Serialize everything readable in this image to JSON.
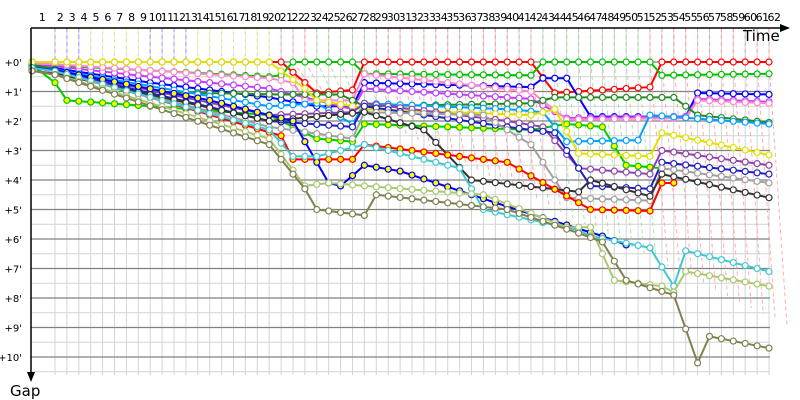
{
  "chart_data": {
    "type": "line",
    "xlabel": "Time",
    "ylabel": "Gap",
    "x_tick_labels": [
      "1",
      "2",
      "3",
      "4",
      "5",
      "6",
      "7",
      "8",
      "9",
      "10",
      "11",
      "12",
      "13",
      "14",
      "15",
      "16",
      "17",
      "18",
      "19",
      "20",
      "21",
      "22",
      "23",
      "24",
      "25",
      "26",
      "27",
      "28",
      "29",
      "30",
      "31",
      "32",
      "33",
      "34",
      "35",
      "36",
      "37",
      "38",
      "39",
      "40",
      "41",
      "42",
      "43",
      "44",
      "45",
      "46",
      "47",
      "48",
      "49",
      "50",
      "51",
      "52",
      "53",
      "54",
      "55",
      "56",
      "57",
      "58",
      "59",
      "60",
      "61",
      "62"
    ],
    "y_tick_labels": [
      "+0'",
      "+1'",
      "+2'",
      "+3'",
      "+4'",
      "+5'",
      "+6'",
      "+7'",
      "+8'",
      "+9'",
      "+10'"
    ],
    "xlim": [
      1,
      62
    ],
    "ylim": [
      0,
      10.6
    ],
    "y_inverted": true,
    "grid": true,
    "series": [
      {
        "color": "#ff0000",
        "fill": "#ffffff",
        "points": [
          [
            1,
            0
          ],
          [
            21,
            0
          ],
          [
            24,
            1.05
          ],
          [
            27,
            0.95
          ],
          [
            28,
            0
          ],
          [
            42,
            0
          ],
          [
            44,
            1.05
          ],
          [
            52,
            0.85
          ],
          [
            53,
            0
          ],
          [
            62,
            0
          ]
        ]
      },
      {
        "color": "#00c000",
        "fill": "#ffffff",
        "points": [
          [
            1,
            0.1
          ],
          [
            20,
            0.5
          ],
          [
            21,
            0.45
          ],
          [
            22,
            0
          ],
          [
            27,
            0
          ],
          [
            28,
            0.4
          ],
          [
            42,
            0.45
          ],
          [
            43,
            0
          ],
          [
            52,
            0
          ],
          [
            53,
            0.45
          ],
          [
            62,
            0.4
          ]
        ]
      },
      {
        "color": "#0000ff",
        "fill": "#ffffff",
        "points": [
          [
            1,
            0.15
          ],
          [
            10,
            0.7
          ],
          [
            20,
            1.2
          ],
          [
            24,
            1.5
          ],
          [
            27,
            1.5
          ],
          [
            28,
            0.7
          ],
          [
            42,
            0.85
          ],
          [
            43,
            0.55
          ],
          [
            45,
            0.55
          ],
          [
            47,
            1.85
          ],
          [
            55,
            1.85
          ],
          [
            56,
            1.05
          ],
          [
            62,
            1.1
          ]
        ]
      },
      {
        "color": "#c040ff",
        "fill": "#ffffff",
        "points": [
          [
            1,
            0.1
          ],
          [
            10,
            0.5
          ],
          [
            20,
            0.9
          ],
          [
            27,
            1.6
          ],
          [
            28,
            0.9
          ],
          [
            42,
            1.25
          ],
          [
            45,
            1.9
          ],
          [
            55,
            1.85
          ],
          [
            56,
            1.25
          ],
          [
            62,
            1.35
          ]
        ]
      },
      {
        "color": "#ff88cc",
        "fill": "#ffffff",
        "points": [
          [
            1,
            0.05
          ],
          [
            20,
            0.55
          ],
          [
            22,
            0.7
          ],
          [
            23,
            1.3
          ],
          [
            27,
            1.3
          ],
          [
            28,
            0.4
          ],
          [
            42,
            1.0
          ],
          [
            45,
            1.95
          ],
          [
            55,
            1.9
          ],
          [
            56,
            1.3
          ],
          [
            62,
            1.4
          ]
        ]
      },
      {
        "color": "#228b22",
        "fill": "#ffffff",
        "points": [
          [
            1,
            0.1
          ],
          [
            8,
            1.0
          ],
          [
            21,
            1.1
          ],
          [
            26,
            1.1
          ],
          [
            28,
            1.5
          ],
          [
            42,
            1.4
          ],
          [
            44,
            1.2
          ],
          [
            54,
            1.2
          ],
          [
            56,
            1.8
          ],
          [
            62,
            2.05
          ]
        ]
      },
      {
        "color": "#00cc00",
        "fill": "#ffff00",
        "points": [
          [
            1,
            0.1
          ],
          [
            3,
            1.3
          ],
          [
            10,
            1.5
          ],
          [
            20,
            1.8
          ],
          [
            24,
            2.6
          ],
          [
            27,
            2.7
          ],
          [
            28,
            2.1
          ],
          [
            42,
            2.3
          ],
          [
            45,
            2.1
          ],
          [
            48,
            2.2
          ],
          [
            50,
            3.5
          ],
          [
            53,
            3.6
          ]
        ]
      },
      {
        "color": "#00a0ff",
        "fill": "#ffffff",
        "points": [
          [
            1,
            0.2
          ],
          [
            20,
            1.5
          ],
          [
            24,
            1.4
          ],
          [
            27,
            2.1
          ],
          [
            28,
            1.4
          ],
          [
            40,
            1.6
          ],
          [
            43,
            1.7
          ],
          [
            45,
            2.7
          ],
          [
            51,
            2.65
          ],
          [
            52,
            1.8
          ],
          [
            62,
            2.1
          ]
        ]
      },
      {
        "color": "#e0e000",
        "fill": "#ffffff",
        "points": [
          [
            1,
            0
          ],
          [
            20,
            0
          ],
          [
            23,
            0.9
          ],
          [
            24,
            1.3
          ],
          [
            27,
            1.5
          ],
          [
            28,
            1.6
          ],
          [
            42,
            1.8
          ],
          [
            44,
            1.6
          ],
          [
            46,
            3.1
          ],
          [
            52,
            3.2
          ],
          [
            53,
            2.4
          ],
          [
            62,
            3.15
          ]
        ]
      },
      {
        "color": "#8e44ad",
        "fill": "#ffffff",
        "points": [
          [
            1,
            0.2
          ],
          [
            20,
            1.8
          ],
          [
            27,
            1.7
          ],
          [
            28,
            1.4
          ],
          [
            40,
            2.0
          ],
          [
            43,
            2.2
          ],
          [
            46,
            3.6
          ],
          [
            52,
            3.8
          ],
          [
            53,
            3.0
          ],
          [
            62,
            3.5
          ]
        ]
      },
      {
        "color": "#2020c0",
        "fill": "#ffffff",
        "points": [
          [
            1,
            0.2
          ],
          [
            20,
            2.0
          ],
          [
            27,
            2.2
          ],
          [
            28,
            1.5
          ],
          [
            40,
            2.2
          ],
          [
            44,
            2.4
          ],
          [
            47,
            4.2
          ],
          [
            52,
            4.3
          ],
          [
            53,
            3.4
          ],
          [
            62,
            3.8
          ]
        ]
      },
      {
        "color": "#a0a0a0",
        "fill": "#ffffff",
        "points": [
          [
            1,
            0.2
          ],
          [
            20,
            2.2
          ],
          [
            27,
            2.6
          ],
          [
            28,
            1.7
          ],
          [
            38,
            1.8
          ],
          [
            42,
            2.8
          ],
          [
            45,
            4.6
          ],
          [
            52,
            4.7
          ],
          [
            53,
            3.6
          ],
          [
            62,
            4.1
          ]
        ]
      },
      {
        "color": "#333333",
        "fill": "#ffffff",
        "points": [
          [
            1,
            0.3
          ],
          [
            20,
            2.0
          ],
          [
            28,
            1.7
          ],
          [
            33,
            2.3
          ],
          [
            37,
            4.0
          ],
          [
            46,
            4.4
          ],
          [
            47,
            4.0
          ],
          [
            52,
            4.55
          ],
          [
            53,
            3.8
          ],
          [
            62,
            4.6
          ]
        ]
      },
      {
        "color": "#ff0000",
        "fill": "#ffff00",
        "points": [
          [
            1,
            0.2
          ],
          [
            10,
            1.2
          ],
          [
            21,
            2.5
          ],
          [
            22,
            3.3
          ],
          [
            27,
            3.3
          ],
          [
            28,
            2.8
          ],
          [
            40,
            3.4
          ],
          [
            47,
            5.0
          ],
          [
            52,
            5.05
          ],
          [
            53,
            4.1
          ],
          [
            54,
            4.1
          ]
        ]
      },
      {
        "color": "#0000ee",
        "fill": "#ffff00",
        "points": [
          [
            1,
            0.2
          ],
          [
            15,
            1.3
          ],
          [
            22,
            2.0
          ],
          [
            25,
            4.1
          ],
          [
            26,
            4.2
          ],
          [
            28,
            3.5
          ],
          [
            31,
            3.7
          ],
          [
            40,
            4.9
          ],
          [
            44,
            5.4
          ],
          [
            48,
            5.9
          ],
          [
            50,
            6.2
          ]
        ]
      },
      {
        "color": "#40c8d0",
        "fill": "#ffffff",
        "points": [
          [
            1,
            0.2
          ],
          [
            20,
            2.3
          ],
          [
            22,
            3.2
          ],
          [
            24,
            3.2
          ],
          [
            28,
            2.8
          ],
          [
            36,
            3.6
          ],
          [
            38,
            5.0
          ],
          [
            46,
            5.7
          ],
          [
            47,
            5.9
          ],
          [
            52,
            6.3
          ],
          [
            54,
            7.6
          ],
          [
            55,
            6.4
          ],
          [
            62,
            7.1
          ]
        ]
      },
      {
        "color": "#a8c870",
        "fill": "#ffffff",
        "points": [
          [
            1,
            0.3
          ],
          [
            20,
            2.6
          ],
          [
            23,
            4.2
          ],
          [
            25,
            4.1
          ],
          [
            28,
            4.2
          ],
          [
            38,
            4.5
          ],
          [
            45,
            5.6
          ],
          [
            47,
            5.6
          ],
          [
            49,
            7.4
          ],
          [
            53,
            7.6
          ],
          [
            54,
            7.8
          ],
          [
            55,
            7.1
          ],
          [
            62,
            7.6
          ]
        ]
      },
      {
        "color": "#808050",
        "fill": "#ffffff",
        "points": [
          [
            1,
            0.3
          ],
          [
            20,
            2.8
          ],
          [
            23,
            4.3
          ],
          [
            24,
            5.0
          ],
          [
            28,
            5.2
          ],
          [
            29,
            4.5
          ],
          [
            40,
            5.0
          ],
          [
            46,
            5.8
          ],
          [
            48,
            6.1
          ],
          [
            50,
            7.4
          ],
          [
            54,
            7.9
          ],
          [
            56,
            10.2
          ],
          [
            57,
            9.3
          ],
          [
            62,
            9.7
          ]
        ]
      }
    ]
  }
}
